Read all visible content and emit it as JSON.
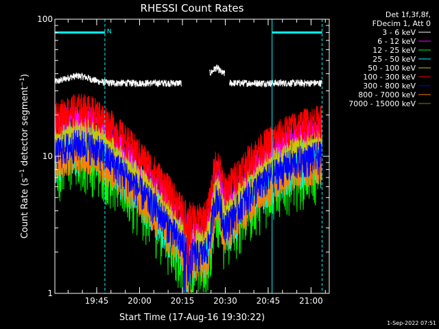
{
  "chart_data": {
    "type": "line",
    "title": "RHESSI Count Rates",
    "xlabel": "Start Time (17-Aug-16 19:30:22)",
    "ylabel_main": "Count Rate (s",
    "ylabel_sup": "−1",
    "ylabel_tail": " detector segment",
    "ylabel_sup2": "−1",
    "ylabel_end": ")",
    "y_scale": "log",
    "ylim": [
      1,
      100
    ],
    "xlim_minutes": [
      0,
      96
    ],
    "x_ticks": [
      {
        "label": "19:45",
        "minute": 14.63
      },
      {
        "label": "20:00",
        "minute": 29.63
      },
      {
        "label": "20:15",
        "minute": 44.63
      },
      {
        "label": "20:30",
        "minute": 59.63
      },
      {
        "label": "20:45",
        "minute": 74.63
      },
      {
        "label": "21:00",
        "minute": 89.63
      }
    ],
    "y_ticks": [
      {
        "label": "1",
        "value": 1
      },
      {
        "label": "10",
        "value": 10
      },
      {
        "label": "100",
        "value": 100
      }
    ],
    "legend_header": [
      "Det 1f,3f,8f,",
      "FDecim 1, Att 0"
    ],
    "series": [
      {
        "name": "3 - 6 keV",
        "color": "#ffffff"
      },
      {
        "name": "6 - 12 keV",
        "color": "#ff00ff"
      },
      {
        "name": "12 - 25 keV",
        "color": "#00ff00"
      },
      {
        "name": "25 - 50 keV",
        "color": "#00ffff"
      },
      {
        "name": "50 - 100 keV",
        "color": "#c8c800"
      },
      {
        "name": "100 - 300 keV",
        "color": "#ff0000"
      },
      {
        "name": "300 - 800 keV",
        "color": "#0000ff"
      },
      {
        "name": "800 - 7000 keV",
        "color": "#ff8000"
      },
      {
        "name": "7000 - 15000 keV",
        "color": "#808000"
      }
    ],
    "night_bars": [
      {
        "start": 0,
        "end": 17.5,
        "label": "N"
      },
      {
        "start": 76.0,
        "end": 93.5,
        "label": ""
      }
    ],
    "night_bar_level": 80,
    "night_bar_color": "#00ffff",
    "saa_marker_label": "N",
    "vlines_minutes": [
      0,
      17.5,
      76.0,
      93.5
    ],
    "footer_date": "1-Sep-2022 07:51"
  }
}
